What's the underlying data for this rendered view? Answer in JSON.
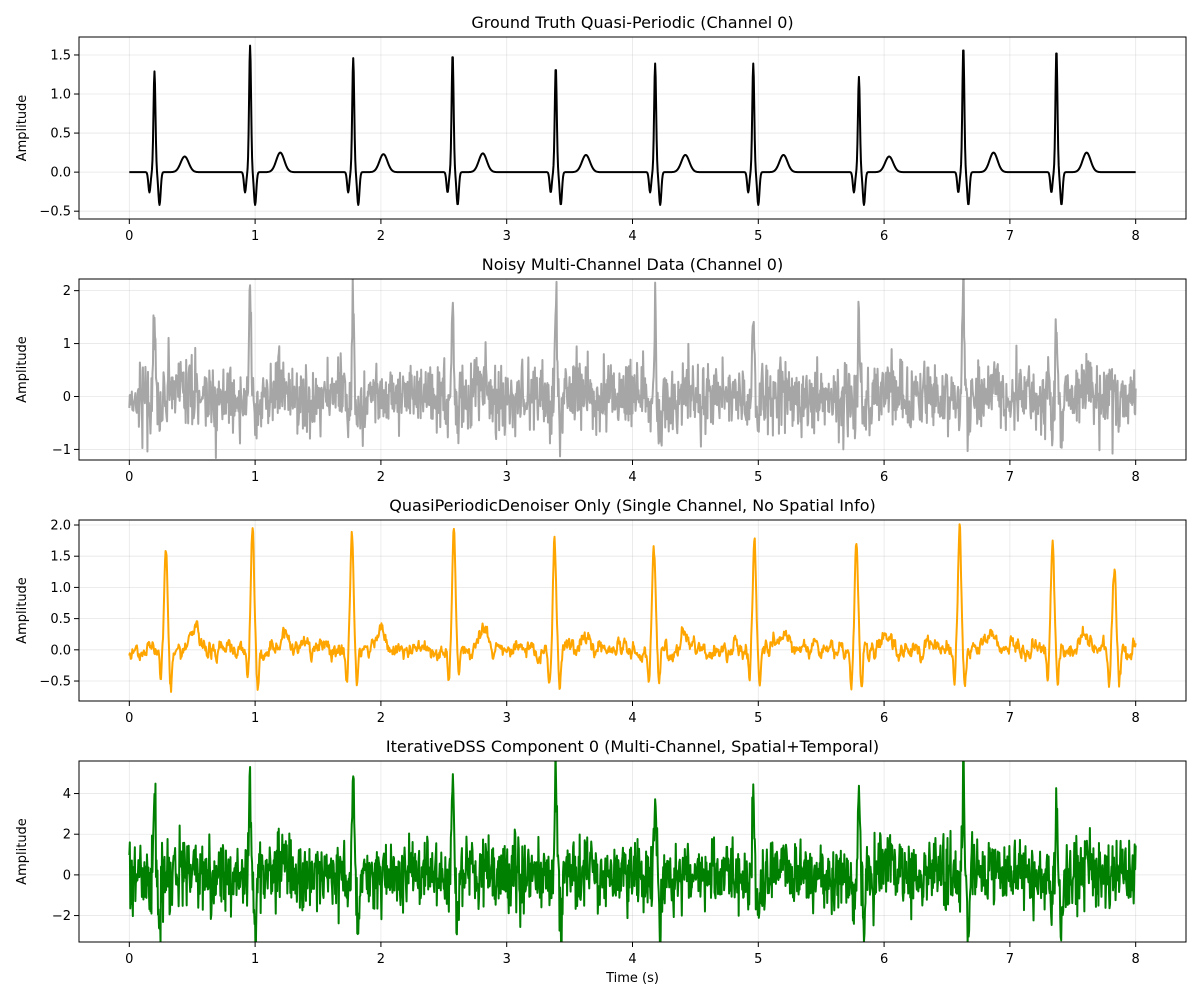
{
  "figure": {
    "xlabel": "Time (s)"
  },
  "chart_data": [
    {
      "type": "line",
      "title": "Ground Truth Quasi-Periodic (Channel 0)",
      "xlabel": "",
      "ylabel": "Amplitude",
      "xlim": [
        -0.4,
        8.4
      ],
      "ylim": [
        -0.6,
        1.73
      ],
      "xticks": [
        0,
        1,
        2,
        3,
        4,
        5,
        6,
        7,
        8
      ],
      "yticks": [
        -0.5,
        0.0,
        0.5,
        1.0,
        1.5
      ],
      "ytick_labels": [
        "−0.5",
        "0.0",
        "0.5",
        "1.0",
        "1.5"
      ],
      "grid": true,
      "color": "#000000",
      "signal": {
        "kind": "clean",
        "beats": [
          0.2,
          0.96,
          1.78,
          2.57,
          3.39,
          4.18,
          4.96,
          5.8,
          6.63,
          7.37
        ],
        "peaks": [
          1.29,
          1.62,
          1.46,
          1.52,
          1.35,
          1.39,
          1.39,
          1.22,
          1.61,
          1.57
        ],
        "t_wave": [
          0.2,
          0.25,
          0.23,
          0.24,
          0.22,
          0.22,
          0.22,
          0.2,
          0.25,
          0.25
        ],
        "q_depth": -0.26,
        "s_depth": -0.42,
        "noise": 0,
        "baseline": 0
      }
    },
    {
      "type": "line",
      "title": "Noisy Multi-Channel Data (Channel 0)",
      "xlabel": "",
      "ylabel": "Amplitude",
      "xlim": [
        -0.4,
        8.4
      ],
      "ylim": [
        -1.2,
        2.22
      ],
      "xticks": [
        0,
        1,
        2,
        3,
        4,
        5,
        6,
        7,
        8
      ],
      "yticks": [
        -1,
        0,
        1,
        2
      ],
      "ytick_labels": [
        "−1",
        "0",
        "1",
        "2"
      ],
      "grid": true,
      "color": "#a6a6a6",
      "signal": {
        "kind": "noisy",
        "beats": [
          0.2,
          0.96,
          1.78,
          2.57,
          3.39,
          4.18,
          4.96,
          5.8,
          6.63,
          7.37
        ],
        "peaks": [
          1.65,
          2.08,
          2.03,
          1.9,
          2.06,
          1.75,
          1.62,
          1.45,
          2.02,
          1.35
        ],
        "t_wave": [
          0.2,
          0.25,
          0.23,
          0.24,
          0.22,
          0.22,
          0.22,
          0.2,
          0.25,
          0.25
        ],
        "q_depth": -0.3,
        "s_depth": -0.5,
        "noise": 0.32,
        "baseline": 0
      }
    },
    {
      "type": "line",
      "title": "QuasiPeriodicDenoiser Only (Single Channel, No Spatial Info)",
      "xlabel": "",
      "ylabel": "Amplitude",
      "xlim": [
        -0.4,
        8.4
      ],
      "ylim": [
        -0.82,
        2.08
      ],
      "xticks": [
        0,
        1,
        2,
        3,
        4,
        5,
        6,
        7,
        8
      ],
      "yticks": [
        -0.5,
        0.0,
        0.5,
        1.0,
        1.5,
        2.0
      ],
      "ytick_labels": [
        "−0.5",
        "0.0",
        "0.5",
        "1.0",
        "1.5",
        "2.0"
      ],
      "grid": true,
      "color": "#ffa500",
      "signal": {
        "kind": "smooth",
        "beats": [
          0.29,
          0.98,
          1.77,
          2.58,
          3.38,
          4.17,
          4.97,
          5.78,
          6.6,
          7.34,
          7.83
        ],
        "peaks": [
          1.72,
          1.84,
          1.81,
          1.9,
          1.66,
          1.65,
          1.75,
          1.65,
          1.9,
          1.77,
          1.22
        ],
        "t_wave": [
          0.3,
          0.3,
          0.3,
          0.3,
          0.3,
          0.3,
          0.3,
          0.3,
          0.3,
          0.3,
          0.2
        ],
        "q_depth": -0.5,
        "s_depth": -0.6,
        "noise": 0.1,
        "baseline": 0
      }
    },
    {
      "type": "line",
      "title": "IterativeDSS Component 0 (Multi-Channel, Spatial+Temporal)",
      "xlabel": "Time (s)",
      "ylabel": "Amplitude",
      "xlim": [
        -0.4,
        8.4
      ],
      "ylim": [
        -3.3,
        5.6
      ],
      "xticks": [
        0,
        1,
        2,
        3,
        4,
        5,
        6,
        7,
        8
      ],
      "yticks": [
        -2,
        0,
        2,
        4
      ],
      "ytick_labels": [
        "−2",
        "0",
        "2",
        "4"
      ],
      "grid": true,
      "color": "#008000",
      "signal": {
        "kind": "noisy",
        "beats": [
          0.2,
          0.96,
          1.78,
          2.57,
          3.39,
          4.18,
          4.96,
          5.8,
          6.63,
          7.37
        ],
        "peaks": [
          4.3,
          5.15,
          4.45,
          4.95,
          4.3,
          4.2,
          4.0,
          3.95,
          4.75,
          4.1
        ],
        "t_wave": [
          0.5,
          0.6,
          0.5,
          0.6,
          0.5,
          0.5,
          0.5,
          0.5,
          0.6,
          0.6
        ],
        "q_depth": -1.2,
        "s_depth": -2.6,
        "noise": 0.85,
        "baseline": 0
      }
    }
  ]
}
